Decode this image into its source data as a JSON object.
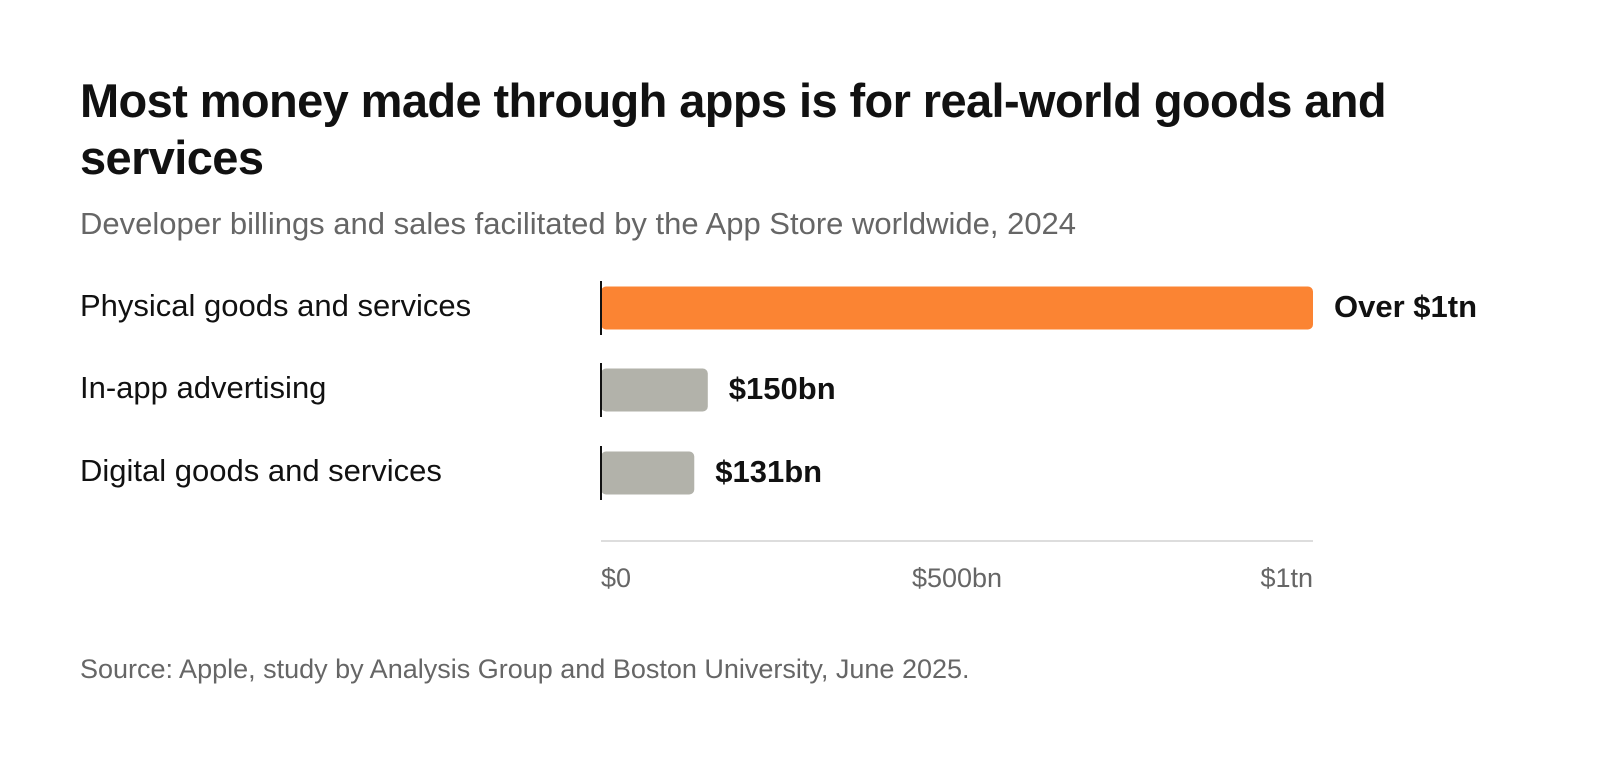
{
  "title": "Most money made through apps is for real-world goods and services",
  "subtitle": "Developer billings and sales facilitated by the App Store worldwide, 2024",
  "source": "Source: Apple, study by Analysis Group and Boston University, June 2025.",
  "colors": {
    "highlight": "#fb8433",
    "muted": "#b2b2aa",
    "axis": "#dddddd",
    "baseline": "#111111"
  },
  "chart_data": {
    "type": "bar",
    "orientation": "horizontal",
    "title": "Most money made through apps is for real-world goods and services",
    "subtitle": "Developer billings and sales facilitated by the App Store worldwide, 2024",
    "xlabel": "",
    "ylabel": "",
    "categories": [
      "Physical goods and services",
      "In-app advertising",
      "Digital goods and services"
    ],
    "values": [
      1000,
      150,
      131
    ],
    "value_unit": "billion USD",
    "value_labels": [
      "Over $1tn",
      "$150bn",
      "$131bn"
    ],
    "bar_colors": [
      "#fb8433",
      "#b2b2aa",
      "#b2b2aa"
    ],
    "xlim": [
      0,
      1000
    ],
    "x_ticks": [
      0,
      500,
      1000
    ],
    "x_tick_labels": [
      "$0",
      "$500bn",
      "$1tn"
    ],
    "grid": false,
    "legend": "none"
  }
}
